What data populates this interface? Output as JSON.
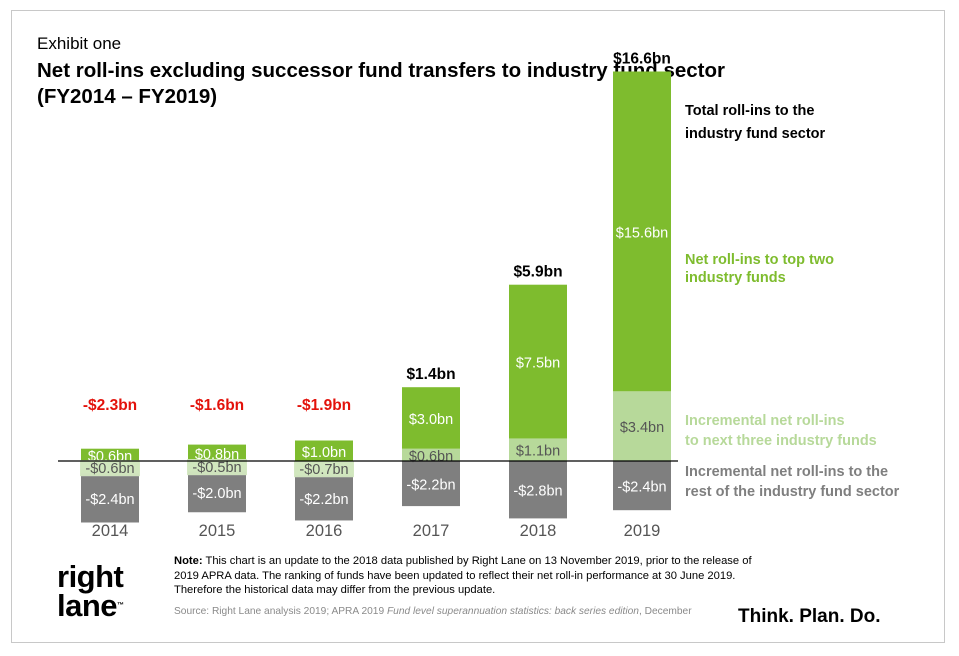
{
  "header": {
    "exhibit": "Exhibit one",
    "title_line1": "Net roll-ins excluding successor fund transfers to industry fund sector",
    "title_line2": "(FY2014 – FY2019)"
  },
  "chart_data": {
    "type": "bar",
    "stacked": true,
    "unit": "$bn",
    "categories": [
      "2014",
      "2015",
      "2016",
      "2017",
      "2018",
      "2019"
    ],
    "series": [
      {
        "name": "Net roll-ins to top two industry funds",
        "color": "#7ebc2e",
        "values": [
          0.6,
          0.8,
          1.0,
          3.0,
          7.5,
          15.6
        ],
        "labels": [
          "$0.6bn",
          "$0.8bn",
          "$1.0bn",
          "$3.0bn",
          "$7.5bn",
          "$15.6bn"
        ]
      },
      {
        "name": "Incremental net roll-ins to next three industry funds",
        "color": "#b7d99a",
        "values": [
          -0.6,
          -0.5,
          -0.7,
          0.6,
          1.1,
          3.4
        ],
        "labels": [
          "-$0.6bn",
          "-$0.5bn",
          "-$0.7bn",
          "$0.6bn",
          "$1.1bn",
          "$3.4bn"
        ]
      },
      {
        "name": "Incremental net roll-ins to the rest of the industry fund sector",
        "color": "#7f7f7f",
        "values": [
          -2.4,
          -2.0,
          -2.2,
          -2.2,
          -2.8,
          -2.4
        ],
        "labels": [
          "-$2.4bn",
          "-$2.0bn",
          "-$2.2bn",
          "-$2.2bn",
          "-$2.8bn",
          "-$2.4bn"
        ]
      }
    ],
    "totals": {
      "name": "Total roll-ins to the industry fund sector",
      "values": [
        -2.3,
        -1.6,
        -1.9,
        1.4,
        5.9,
        16.6
      ],
      "labels": [
        "-$2.3bn",
        "-$1.6bn",
        "-$1.9bn",
        "$1.4bn",
        "$5.9bn",
        "$16.6bn"
      ],
      "negative_color": "#e3120b",
      "positive_color": "#000000"
    },
    "legend_placement": "right",
    "legend_labels": [
      {
        "line1": "Total roll-ins to the",
        "line2": "industry fund sector",
        "color": "#000000"
      },
      {
        "line1": "Net roll-ins to top two",
        "line2": "industry funds",
        "color": "#7ebc2e"
      },
      {
        "line1": "Incremental net roll-ins",
        "line2": "to next three industry funds",
        "color": "#b7d99a"
      },
      {
        "line1": "Incremental net roll-ins to the",
        "line2": "rest of the industry fund sector",
        "color": "#7f7f7f"
      }
    ],
    "grid": false
  },
  "footer": {
    "note_label": "Note:",
    "note_text": " This chart is an update to the 2018 data published by Right Lane on 13 November 2019, prior to the release of 2019 APRA data. The ranking of funds have been updated to reflect their net roll-in performance at 30 June 2019. Therefore the historical data may differ from the previous update.",
    "source_prefix": "Source: Right Lane analysis 2019; APRA 2019 ",
    "source_italic": "Fund level superannuation statistics: back series edition",
    "source_suffix": ", December",
    "logo_line1": "right",
    "logo_line2": "lane",
    "logo_mark": "™",
    "tagline": "Think. Plan. Do."
  }
}
